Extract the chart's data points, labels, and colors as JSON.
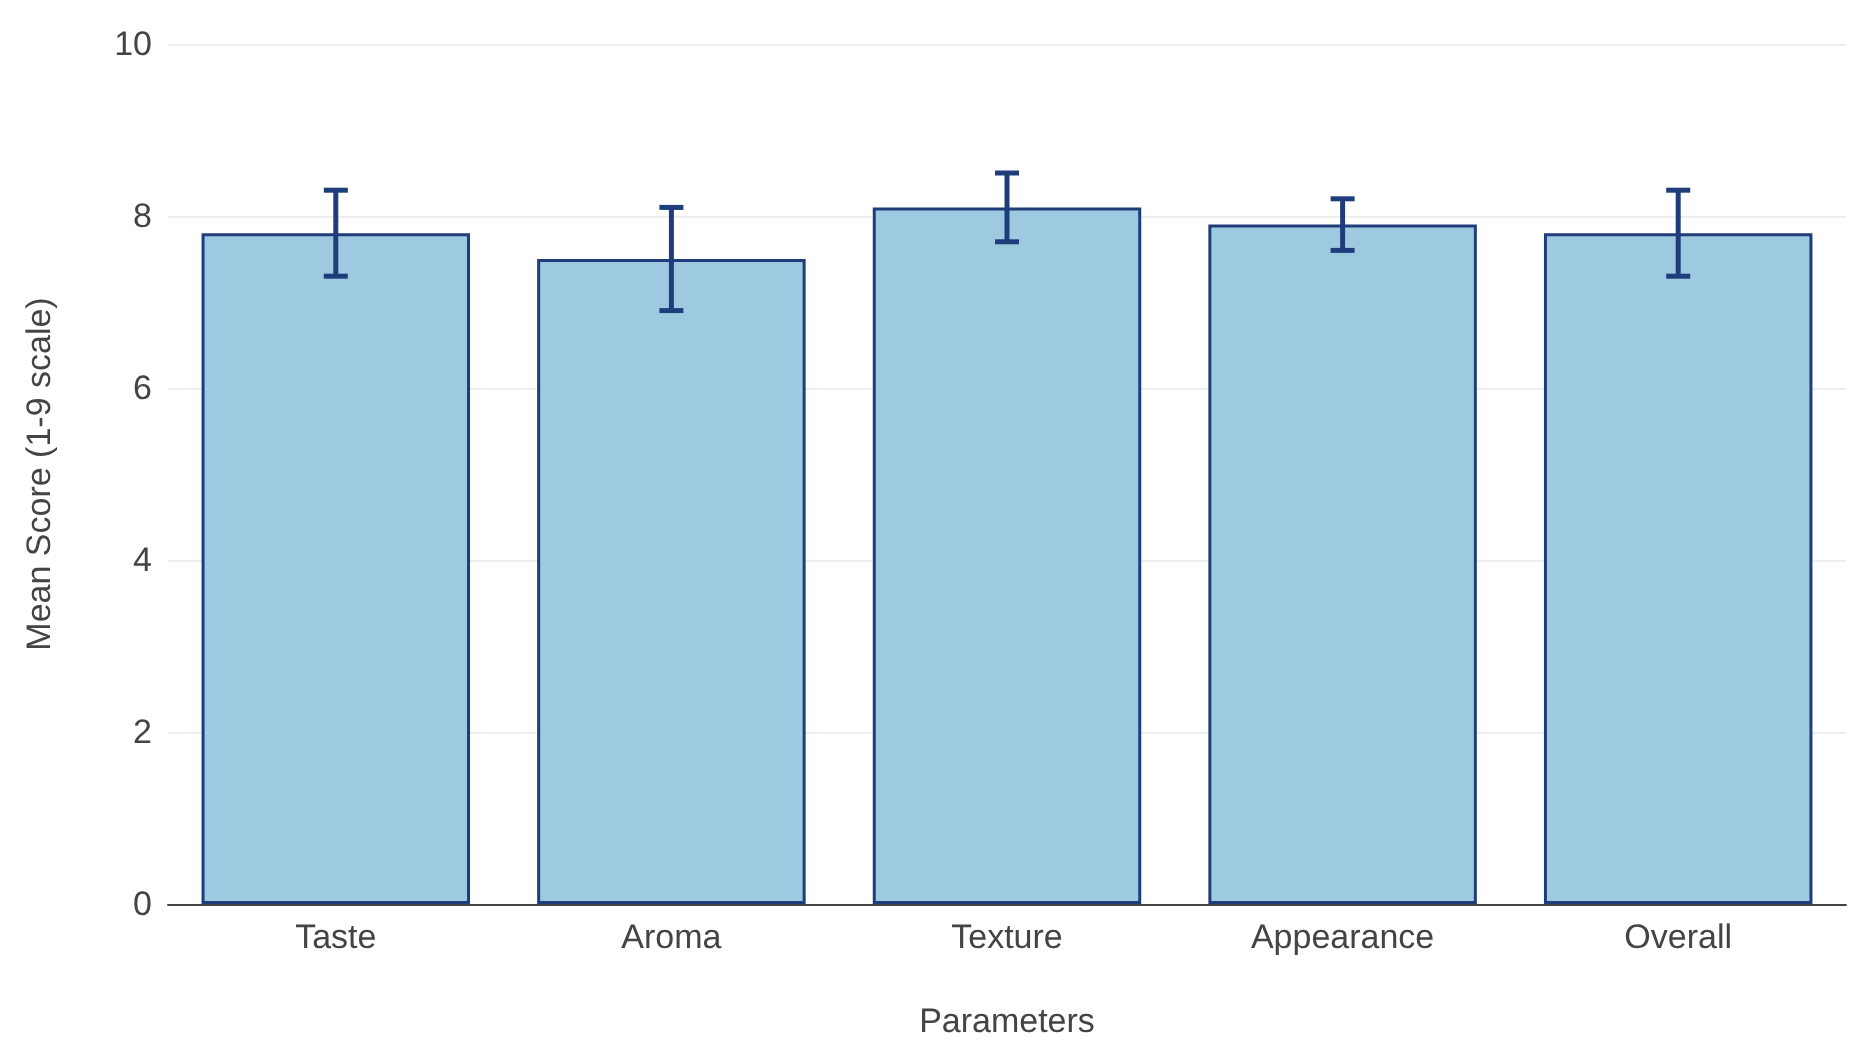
{
  "chart_data": {
    "type": "bar",
    "xlabel": "Parameters",
    "ylabel": "Mean Score (1-9 scale)",
    "categories": [
      "Taste",
      "Aroma",
      "Texture",
      "Appearance",
      "Overall"
    ],
    "values": [
      7.8,
      7.5,
      8.1,
      7.9,
      7.8
    ],
    "errors": [
      0.5,
      0.6,
      0.4,
      0.3,
      0.5
    ],
    "color": "#9ecae1",
    "ylim": [
      0,
      10
    ],
    "yticks": [
      0,
      2,
      4,
      6,
      8,
      10
    ],
    "grid": "y"
  }
}
